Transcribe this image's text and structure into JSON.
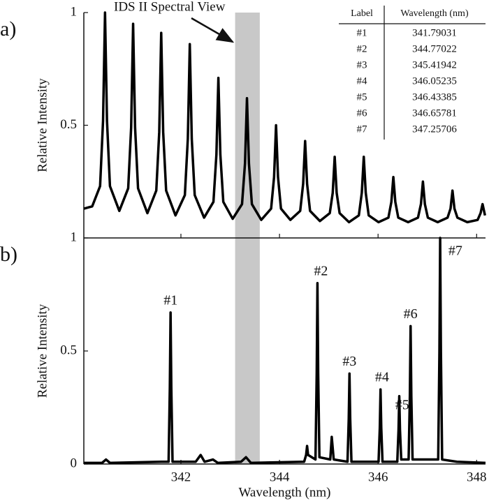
{
  "chart_data": [
    {
      "type": "line",
      "panel_label": "a)",
      "ylabel": "Relative Intensity",
      "color": "#000000",
      "xlim": [
        340.03,
        348.18
      ],
      "xticks": [
        342,
        344,
        346,
        348
      ],
      "ylim": [
        0,
        1
      ],
      "yticks": [
        0.5,
        1
      ],
      "highlight": {
        "range": [
          343.1,
          343.6
        ],
        "color": "#c8c8c8",
        "label": "IDS II Spectral View"
      },
      "x": [
        340.03,
        340.2,
        340.36,
        340.42,
        340.46,
        340.5,
        340.56,
        340.75,
        340.93,
        340.99,
        341.03,
        341.07,
        341.13,
        341.32,
        341.5,
        341.56,
        341.6,
        341.64,
        341.7,
        341.89,
        342.08,
        342.14,
        342.18,
        342.22,
        342.28,
        342.47,
        342.66,
        342.72,
        342.76,
        342.8,
        342.86,
        343.05,
        343.24,
        343.3,
        343.34,
        343.38,
        343.44,
        343.63,
        343.83,
        343.89,
        343.93,
        343.97,
        344.03,
        344.22,
        344.42,
        344.48,
        344.52,
        344.56,
        344.62,
        344.82,
        345.02,
        345.08,
        345.12,
        345.16,
        345.22,
        345.41,
        345.61,
        345.67,
        345.71,
        345.75,
        345.81,
        346.01,
        346.21,
        346.27,
        346.31,
        346.35,
        346.41,
        346.61,
        346.81,
        346.87,
        346.91,
        346.95,
        347.01,
        347.21,
        347.41,
        347.47,
        347.51,
        347.55,
        347.61,
        347.81,
        348.02,
        348.08,
        348.12,
        348.16,
        348.17
      ],
      "values": [
        0.13,
        0.14,
        0.23,
        0.52,
        1.0,
        0.52,
        0.23,
        0.12,
        0.22,
        0.49,
        0.95,
        0.49,
        0.22,
        0.11,
        0.21,
        0.47,
        0.91,
        0.47,
        0.21,
        0.1,
        0.19,
        0.44,
        0.86,
        0.44,
        0.19,
        0.09,
        0.16,
        0.37,
        0.71,
        0.37,
        0.16,
        0.085,
        0.15,
        0.33,
        0.62,
        0.33,
        0.15,
        0.08,
        0.13,
        0.27,
        0.5,
        0.27,
        0.13,
        0.08,
        0.12,
        0.24,
        0.43,
        0.24,
        0.12,
        0.075,
        0.11,
        0.2,
        0.36,
        0.2,
        0.11,
        0.07,
        0.1,
        0.2,
        0.36,
        0.2,
        0.1,
        0.07,
        0.09,
        0.16,
        0.27,
        0.16,
        0.09,
        0.07,
        0.09,
        0.15,
        0.25,
        0.15,
        0.09,
        0.07,
        0.09,
        0.13,
        0.21,
        0.13,
        0.09,
        0.07,
        0.08,
        0.11,
        0.15,
        0.11,
        0.1
      ]
    },
    {
      "type": "line",
      "panel_label": "b)",
      "ylabel": "Relative Intensity",
      "xlabel": "Wavelength (nm)",
      "color": "#000000",
      "xlim": [
        340.03,
        348.18
      ],
      "xticks": [
        342,
        344,
        346,
        348
      ],
      "ylim": [
        0,
        1
      ],
      "yticks": [
        0,
        0.5,
        1
      ],
      "x": [
        340.03,
        340.4,
        340.48,
        340.56,
        341.6,
        341.75,
        341.775,
        341.79,
        341.805,
        341.83,
        342.3,
        342.4,
        342.48,
        342.65,
        342.75,
        343.22,
        343.32,
        343.42,
        344.5,
        344.54,
        344.56,
        344.58,
        344.73,
        344.755,
        344.77,
        344.785,
        344.81,
        345.03,
        345.06,
        345.1,
        345.38,
        345.405,
        345.42,
        345.435,
        345.46,
        346.01,
        346.035,
        346.05,
        346.065,
        346.09,
        346.39,
        346.415,
        346.43,
        346.445,
        346.47,
        346.62,
        346.645,
        346.66,
        346.675,
        346.7,
        347.22,
        347.245,
        347.26,
        347.275,
        347.3,
        347.6,
        348.18
      ],
      "values": [
        0.005,
        0.005,
        0.02,
        0.005,
        0.01,
        0.01,
        0.34,
        0.67,
        0.34,
        0.01,
        0.01,
        0.04,
        0.01,
        0.02,
        0.005,
        0.01,
        0.03,
        0.005,
        0.01,
        0.04,
        0.08,
        0.04,
        0.02,
        0.4,
        0.8,
        0.4,
        0.03,
        0.02,
        0.12,
        0.02,
        0.01,
        0.2,
        0.4,
        0.2,
        0.01,
        0.01,
        0.16,
        0.33,
        0.16,
        0.01,
        0.01,
        0.15,
        0.3,
        0.15,
        0.02,
        0.02,
        0.3,
        0.61,
        0.3,
        0.02,
        0.02,
        0.5,
        1.0,
        0.5,
        0.02,
        0.01,
        0.005
      ]
    }
  ],
  "table": {
    "header": [
      "Label",
      "Wavelength (nm)"
    ],
    "rows": [
      [
        "#1",
        "341.79031"
      ],
      [
        "#2",
        "344.77022"
      ],
      [
        "#3",
        "345.41942"
      ],
      [
        "#4",
        "346.05235"
      ],
      [
        "#5",
        "346.43385"
      ],
      [
        "#6",
        "346.65781"
      ],
      [
        "#7",
        "347.25706"
      ]
    ]
  }
}
